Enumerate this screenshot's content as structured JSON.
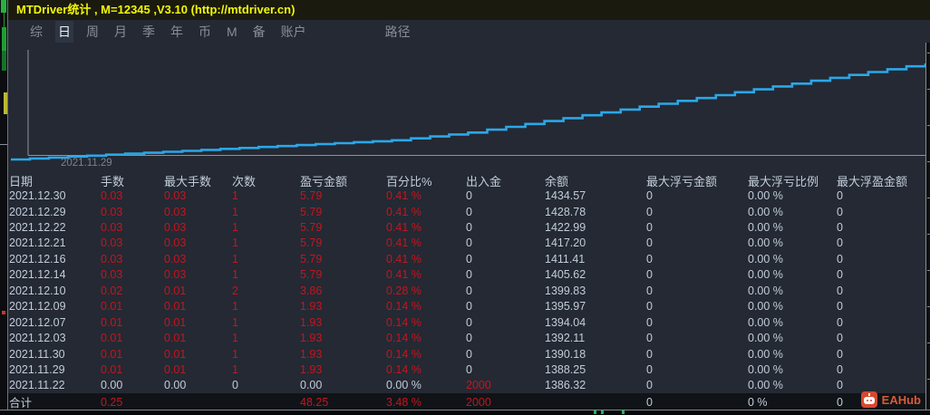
{
  "window": {
    "title": "MTDriver统计 , M=12345 ,V3.10 (http://mtdriver.cn)"
  },
  "tabbar": {
    "tabs": [
      "综",
      "日",
      "周",
      "月",
      "季",
      "年",
      "币",
      "M",
      "备",
      "账户"
    ],
    "selected_index": 1,
    "path_label": "路径"
  },
  "chart_data": {
    "type": "line",
    "title": "",
    "xlabel": "",
    "ylabel": "",
    "x_tick_labels": [
      "2021.11.29"
    ],
    "series": [
      {
        "name": "余额",
        "x": [
          "2021.11.22",
          "2021.11.29",
          "2021.11.30",
          "2021.12.03",
          "2021.12.07",
          "2021.12.09",
          "2021.12.10",
          "2021.12.14",
          "2021.12.16",
          "2021.12.21",
          "2021.12.22",
          "2021.12.29",
          "2021.12.30"
        ],
        "values": [
          1386.32,
          1388.25,
          1390.18,
          1392.11,
          1394.04,
          1395.97,
          1399.83,
          1405.62,
          1411.41,
          1417.2,
          1422.99,
          1428.78,
          1434.57
        ]
      }
    ],
    "ylim": [
      1384,
      1436
    ],
    "grid": false,
    "legend": false,
    "line_color": "#2ba7e8",
    "axis_color": "#8e949b"
  },
  "table": {
    "headers": [
      "日期",
      "手数",
      "最大手数",
      "次数",
      "盈亏金额",
      "百分比%",
      "出入金",
      "余额",
      "最大浮亏金额",
      "最大浮亏比例",
      "最大浮盈金额"
    ],
    "rows": [
      {
        "cells": [
          "2021.12.30",
          "0.03",
          "0.03",
          "1",
          "5.79",
          "0.41 %",
          "0",
          "1434.57",
          "0",
          "0.00 %",
          "0"
        ],
        "red": [
          1,
          2,
          3,
          4,
          5
        ]
      },
      {
        "cells": [
          "2021.12.29",
          "0.03",
          "0.03",
          "1",
          "5.79",
          "0.41 %",
          "0",
          "1428.78",
          "0",
          "0.00 %",
          "0"
        ],
        "red": [
          1,
          2,
          3,
          4,
          5
        ]
      },
      {
        "cells": [
          "2021.12.22",
          "0.03",
          "0.03",
          "1",
          "5.79",
          "0.41 %",
          "0",
          "1422.99",
          "0",
          "0.00 %",
          "0"
        ],
        "red": [
          1,
          2,
          3,
          4,
          5
        ]
      },
      {
        "cells": [
          "2021.12.21",
          "0.03",
          "0.03",
          "1",
          "5.79",
          "0.41 %",
          "0",
          "1417.20",
          "0",
          "0.00 %",
          "0"
        ],
        "red": [
          1,
          2,
          3,
          4,
          5
        ]
      },
      {
        "cells": [
          "2021.12.16",
          "0.03",
          "0.03",
          "1",
          "5.79",
          "0.41 %",
          "0",
          "1411.41",
          "0",
          "0.00 %",
          "0"
        ],
        "red": [
          1,
          2,
          3,
          4,
          5
        ]
      },
      {
        "cells": [
          "2021.12.14",
          "0.03",
          "0.03",
          "1",
          "5.79",
          "0.41 %",
          "0",
          "1405.62",
          "0",
          "0.00 %",
          "0"
        ],
        "red": [
          1,
          2,
          3,
          4,
          5
        ]
      },
      {
        "cells": [
          "2021.12.10",
          "0.02",
          "0.01",
          "2",
          "3.86",
          "0.28 %",
          "0",
          "1399.83",
          "0",
          "0.00 %",
          "0"
        ],
        "red": [
          1,
          2,
          3,
          4,
          5
        ]
      },
      {
        "cells": [
          "2021.12.09",
          "0.01",
          "0.01",
          "1",
          "1.93",
          "0.14 %",
          "0",
          "1395.97",
          "0",
          "0.00 %",
          "0"
        ],
        "red": [
          1,
          2,
          3,
          4,
          5
        ]
      },
      {
        "cells": [
          "2021.12.07",
          "0.01",
          "0.01",
          "1",
          "1.93",
          "0.14 %",
          "0",
          "1394.04",
          "0",
          "0.00 %",
          "0"
        ],
        "red": [
          1,
          2,
          3,
          4,
          5
        ]
      },
      {
        "cells": [
          "2021.12.03",
          "0.01",
          "0.01",
          "1",
          "1.93",
          "0.14 %",
          "0",
          "1392.11",
          "0",
          "0.00 %",
          "0"
        ],
        "red": [
          1,
          2,
          3,
          4,
          5
        ]
      },
      {
        "cells": [
          "2021.11.30",
          "0.01",
          "0.01",
          "1",
          "1.93",
          "0.14 %",
          "0",
          "1390.18",
          "0",
          "0.00 %",
          "0"
        ],
        "red": [
          1,
          2,
          3,
          4,
          5
        ]
      },
      {
        "cells": [
          "2021.11.29",
          "0.01",
          "0.01",
          "1",
          "1.93",
          "0.14 %",
          "0",
          "1388.25",
          "0",
          "0.00 %",
          "0"
        ],
        "red": [
          1,
          2,
          3,
          4,
          5
        ]
      },
      {
        "cells": [
          "2021.11.22",
          "0.00",
          "0.00",
          "0",
          "0.00",
          "0.00 %",
          "2000",
          "1386.32",
          "0",
          "0.00 %",
          "0"
        ],
        "red": [
          6
        ]
      }
    ],
    "total": {
      "cells": [
        "合计",
        "0.25",
        "",
        "",
        "48.25",
        "3.48 %",
        "2000",
        "",
        "0",
        "0 %",
        "0"
      ],
      "red": [
        1,
        4,
        5,
        6
      ]
    }
  },
  "badge": {
    "label": "EAHub",
    "color": "#d7482f"
  },
  "colors": {
    "title_yellow": "#f4f806",
    "value_red": "#c3161f",
    "text_light": "#c2cdda",
    "panel_bg": "#242933",
    "chart_line": "#2ba7e8"
  }
}
